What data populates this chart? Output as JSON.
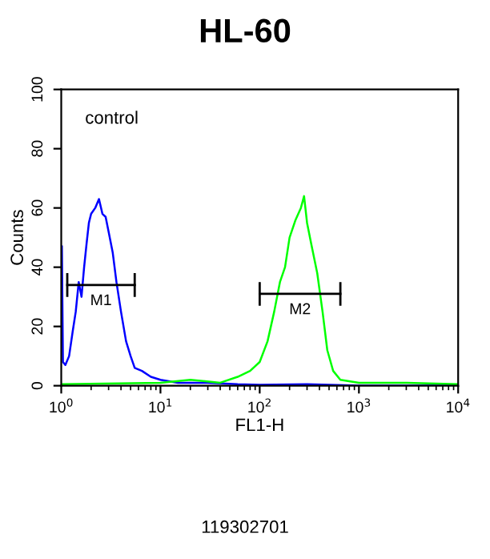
{
  "chart_data": {
    "type": "line",
    "title": "HL-60",
    "xlabel": "FL1-H",
    "ylabel": "Counts",
    "log": "x",
    "xlim": [
      1,
      10000
    ],
    "ylim": [
      0,
      100
    ],
    "xticks": [
      {
        "value": 1,
        "label": "10$^{0}$"
      },
      {
        "value": 10,
        "label": "10$^{1}$"
      },
      {
        "value": 100,
        "label": "10$^{2}$"
      },
      {
        "value": 1000,
        "label": "10$^{3}$"
      },
      {
        "value": 10000,
        "label": "10$^{4}$"
      }
    ],
    "yticks": [
      0,
      20,
      40,
      60,
      80,
      100
    ],
    "grid": false,
    "legend": false,
    "annotations": [
      "control",
      "119302701"
    ],
    "series": [
      {
        "color": "#0000ff",
        "x": [
          1.015,
          1.04,
          1.1,
          1.2,
          1.3,
          1.4,
          1.5,
          1.6,
          1.7,
          1.8,
          1.9,
          2.0,
          2.2,
          2.4,
          2.6,
          2.8,
          3.0,
          3.3,
          3.6,
          4.0,
          4.5,
          5.0,
          5.5,
          6.5,
          8,
          10,
          15,
          30,
          60,
          100,
          300,
          1000,
          10000
        ],
        "values": [
          47,
          8,
          7,
          10,
          18,
          25,
          35,
          30,
          40,
          48,
          55,
          58,
          60,
          63,
          58,
          57,
          52,
          45,
          35,
          25,
          15,
          10,
          6,
          5,
          3,
          2,
          1,
          1,
          0.5,
          0.3,
          0.5,
          0,
          0
        ]
      },
      {
        "color": "#00ff00",
        "x": [
          1,
          10,
          20,
          40,
          60,
          80,
          100,
          120,
          140,
          160,
          180,
          200,
          230,
          260,
          280,
          300,
          330,
          380,
          430,
          480,
          550,
          650,
          1000,
          3000,
          10000
        ],
        "values": [
          0.5,
          1,
          2,
          1,
          3,
          5,
          8,
          15,
          25,
          35,
          40,
          50,
          56,
          60,
          64,
          55,
          48,
          38,
          25,
          12,
          5,
          2,
          1,
          1,
          0.5
        ]
      },
      {
        "name": "M1",
        "color": "#000000",
        "x": [
          1.15,
          5.5
        ],
        "values": [
          34,
          34
        ],
        "errors": [
          4,
          4
        ]
      },
      {
        "name": "M2",
        "color": "#000000",
        "x": [
          100,
          650
        ],
        "values": [
          31,
          31
        ],
        "errors": [
          4,
          4
        ]
      }
    ]
  }
}
